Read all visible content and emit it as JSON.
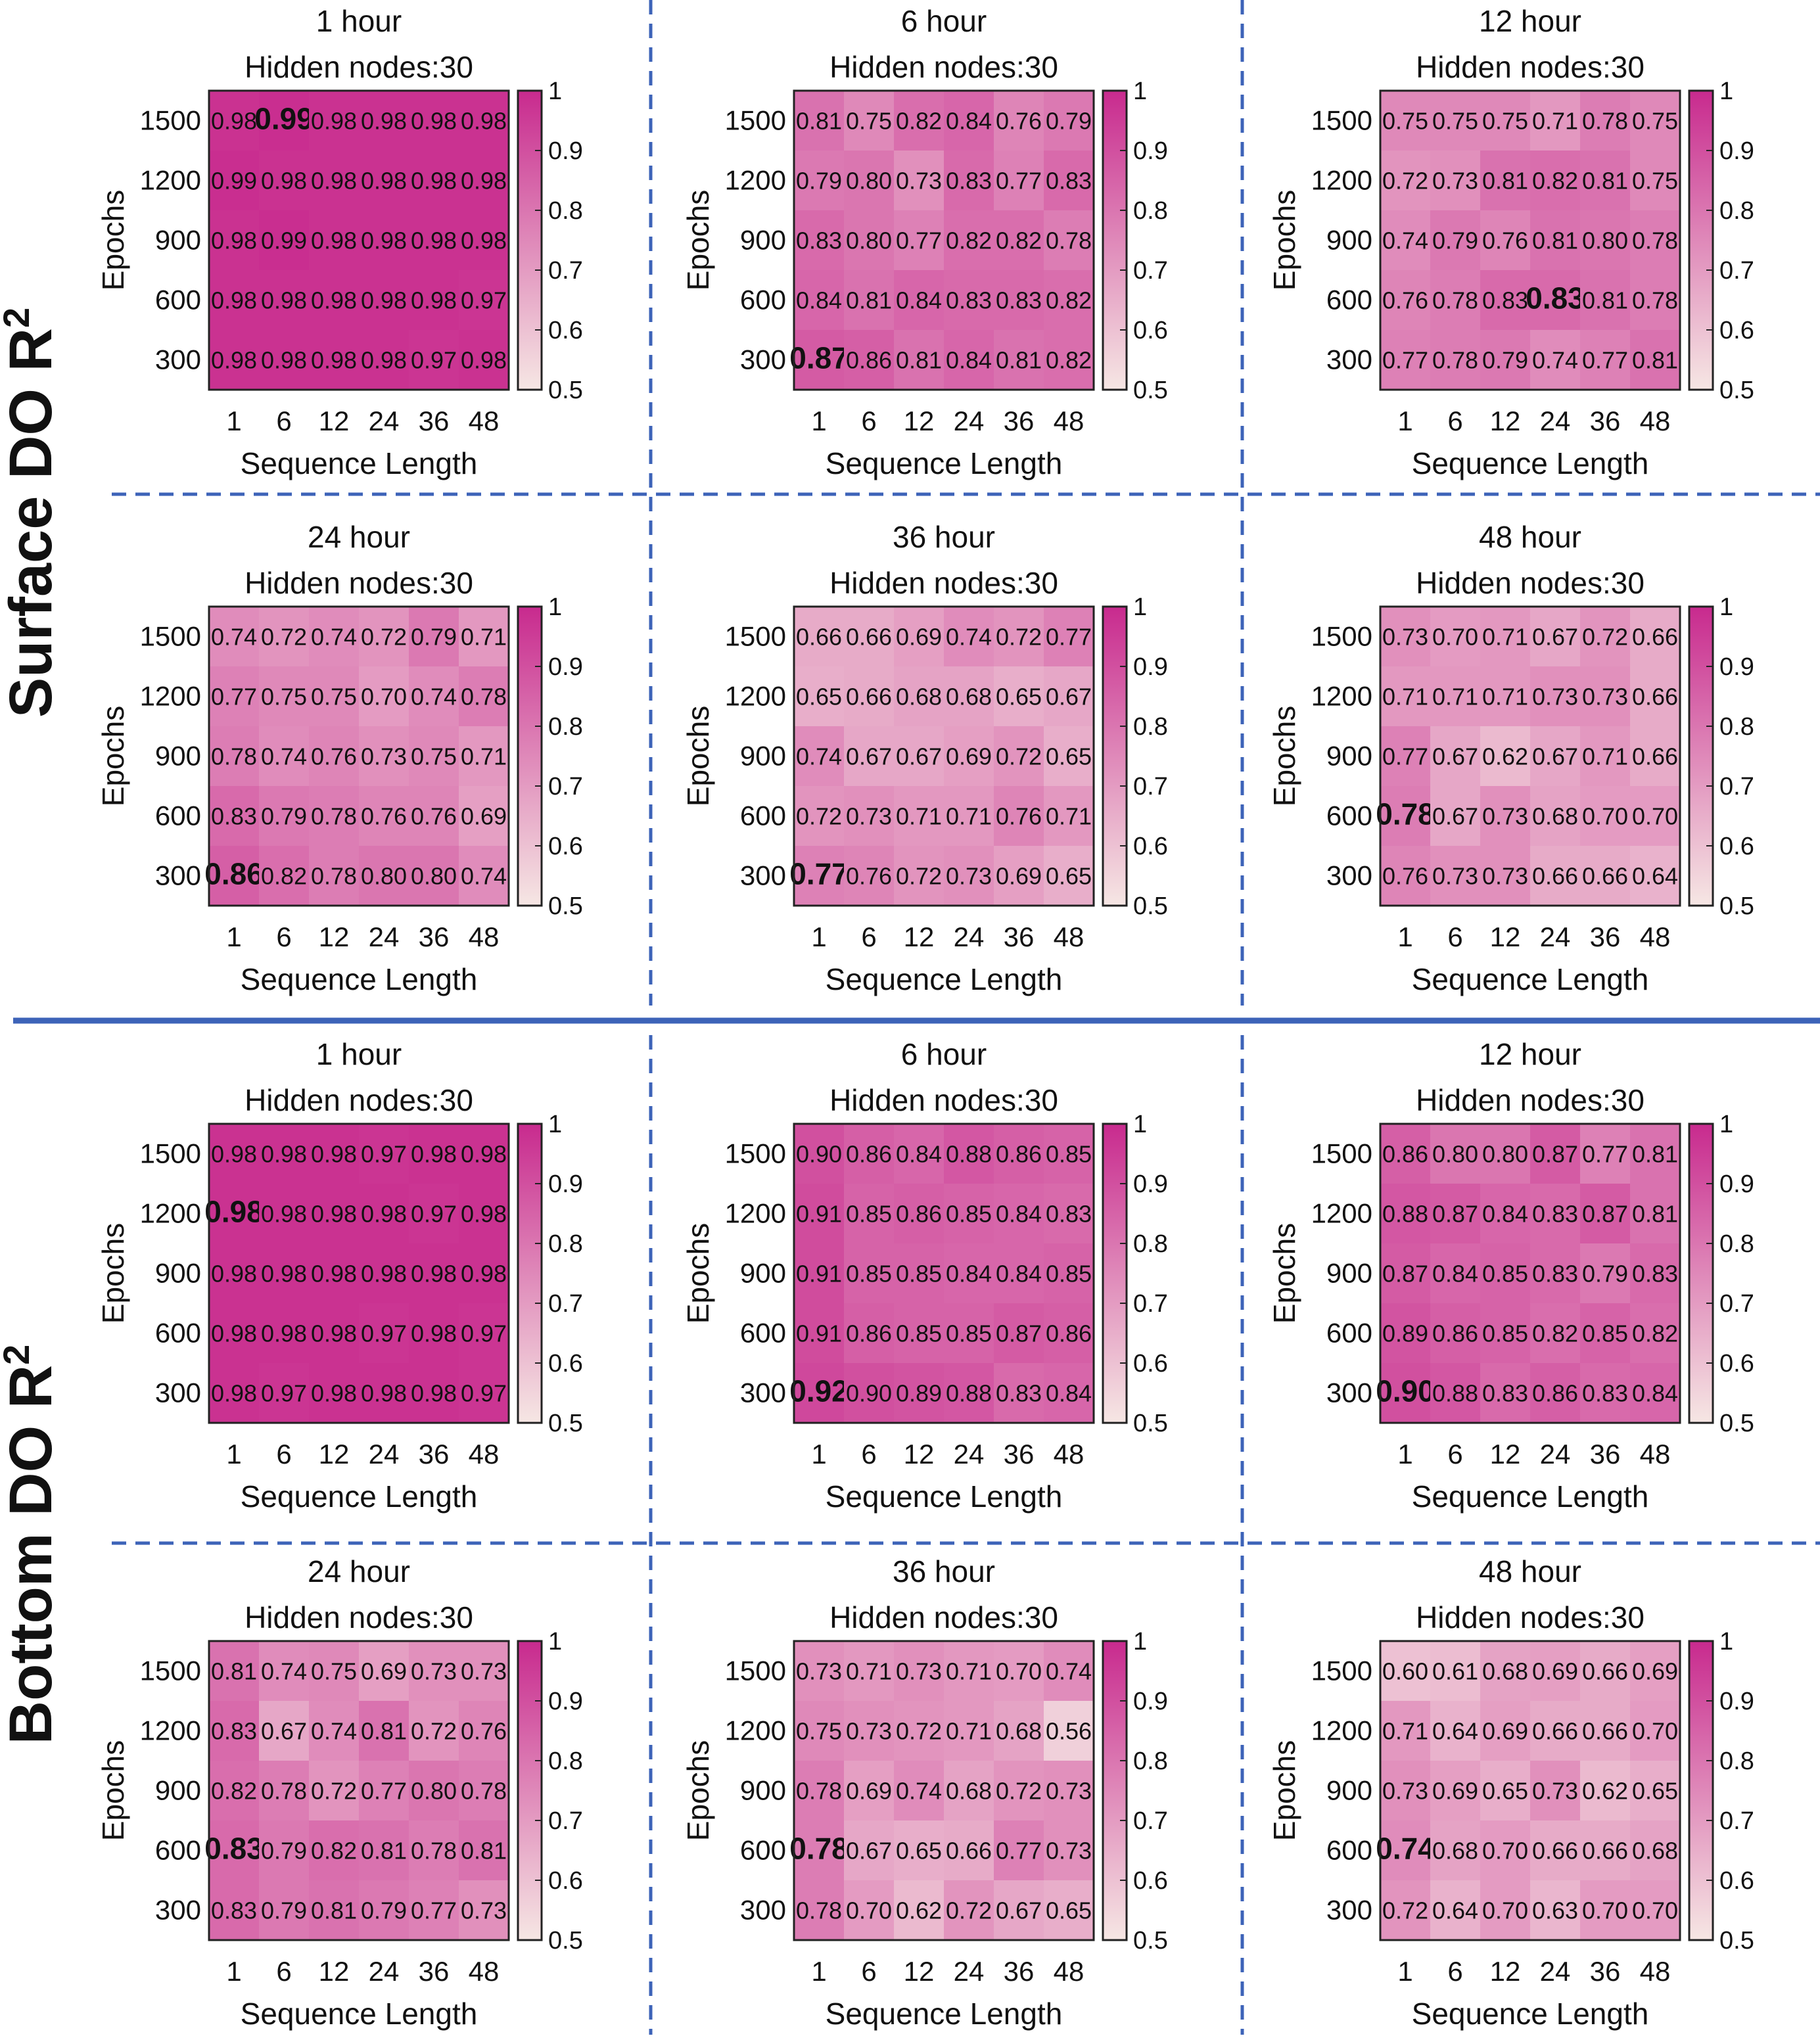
{
  "groups": [
    {
      "label": "Surface DO R",
      "sup": "2"
    },
    {
      "label": "Bottom DO R",
      "sup": "2"
    }
  ],
  "colors": {
    "low": "#f6e7e4",
    "high": "#c82a8e",
    "divider": "#3d63b8"
  },
  "chart_data": [
    {
      "type": "heatmap",
      "group": 0,
      "title": "1 hour",
      "subtitle": "Hidden nodes:30",
      "xlabel": "Sequence Length",
      "ylabel": "Epochs",
      "x": [
        "1",
        "6",
        "12",
        "24",
        "36",
        "48"
      ],
      "y": [
        "1500",
        "1200",
        "900",
        "600",
        "300"
      ],
      "values": [
        [
          0.98,
          0.99,
          0.98,
          0.98,
          0.98,
          0.98
        ],
        [
          0.99,
          0.98,
          0.98,
          0.98,
          0.98,
          0.98
        ],
        [
          0.98,
          0.99,
          0.98,
          0.98,
          0.98,
          0.98
        ],
        [
          0.98,
          0.98,
          0.98,
          0.98,
          0.98,
          0.97
        ],
        [
          0.98,
          0.98,
          0.98,
          0.98,
          0.97,
          0.98
        ]
      ],
      "highlight": [
        0,
        1
      ],
      "colorbar": {
        "range": [
          0.5,
          1
        ],
        "ticks": [
          "1",
          "0.9",
          "0.8",
          "0.7",
          "0.6",
          "0.5"
        ]
      }
    },
    {
      "type": "heatmap",
      "group": 0,
      "title": "6 hour",
      "subtitle": "Hidden nodes:30",
      "xlabel": "Sequence Length",
      "ylabel": "Epochs",
      "x": [
        "1",
        "6",
        "12",
        "24",
        "36",
        "48"
      ],
      "y": [
        "1500",
        "1200",
        "900",
        "600",
        "300"
      ],
      "values": [
        [
          0.81,
          0.75,
          0.82,
          0.84,
          0.76,
          0.79
        ],
        [
          0.79,
          0.8,
          0.73,
          0.83,
          0.77,
          0.83
        ],
        [
          0.83,
          0.8,
          0.77,
          0.82,
          0.82,
          0.78
        ],
        [
          0.84,
          0.81,
          0.84,
          0.83,
          0.83,
          0.82
        ],
        [
          0.87,
          0.86,
          0.81,
          0.84,
          0.81,
          0.82
        ]
      ],
      "highlight": [
        4,
        0
      ],
      "colorbar": {
        "range": [
          0.5,
          1
        ],
        "ticks": [
          "1",
          "0.9",
          "0.8",
          "0.7",
          "0.6",
          "0.5"
        ]
      }
    },
    {
      "type": "heatmap",
      "group": 0,
      "title": "12 hour",
      "subtitle": "Hidden nodes:30",
      "xlabel": "Sequence Length",
      "ylabel": "Epochs",
      "x": [
        "1",
        "6",
        "12",
        "24",
        "36",
        "48"
      ],
      "y": [
        "1500",
        "1200",
        "900",
        "600",
        "300"
      ],
      "values": [
        [
          0.75,
          0.75,
          0.75,
          0.71,
          0.78,
          0.75
        ],
        [
          0.72,
          0.73,
          0.81,
          0.82,
          0.81,
          0.75
        ],
        [
          0.74,
          0.79,
          0.76,
          0.81,
          0.8,
          0.78
        ],
        [
          0.76,
          0.78,
          0.83,
          0.83,
          0.81,
          0.78
        ],
        [
          0.77,
          0.78,
          0.79,
          0.74,
          0.77,
          0.81
        ]
      ],
      "highlight": [
        3,
        3
      ],
      "colorbar": {
        "range": [
          0.5,
          1
        ],
        "ticks": [
          "1",
          "0.9",
          "0.8",
          "0.7",
          "0.6",
          "0.5"
        ]
      }
    },
    {
      "type": "heatmap",
      "group": 0,
      "title": "24 hour",
      "subtitle": "Hidden nodes:30",
      "xlabel": "Sequence Length",
      "ylabel": "Epochs",
      "x": [
        "1",
        "6",
        "12",
        "24",
        "36",
        "48"
      ],
      "y": [
        "1500",
        "1200",
        "900",
        "600",
        "300"
      ],
      "values": [
        [
          0.74,
          0.72,
          0.74,
          0.72,
          0.79,
          0.71
        ],
        [
          0.77,
          0.75,
          0.75,
          0.7,
          0.74,
          0.78
        ],
        [
          0.78,
          0.74,
          0.76,
          0.73,
          0.75,
          0.71
        ],
        [
          0.83,
          0.79,
          0.78,
          0.76,
          0.76,
          0.69
        ],
        [
          0.86,
          0.82,
          0.78,
          0.8,
          0.8,
          0.74
        ]
      ],
      "highlight": [
        4,
        0
      ],
      "colorbar": {
        "range": [
          0.5,
          1
        ],
        "ticks": [
          "1",
          "0.9",
          "0.8",
          "0.7",
          "0.6",
          "0.5"
        ]
      }
    },
    {
      "type": "heatmap",
      "group": 0,
      "title": "36 hour",
      "subtitle": "Hidden nodes:30",
      "xlabel": "Sequence Length",
      "ylabel": "Epochs",
      "x": [
        "1",
        "6",
        "12",
        "24",
        "36",
        "48"
      ],
      "y": [
        "1500",
        "1200",
        "900",
        "600",
        "300"
      ],
      "values": [
        [
          0.66,
          0.66,
          0.69,
          0.74,
          0.72,
          0.77
        ],
        [
          0.65,
          0.66,
          0.68,
          0.68,
          0.65,
          0.67
        ],
        [
          0.74,
          0.67,
          0.67,
          0.69,
          0.72,
          0.65
        ],
        [
          0.72,
          0.73,
          0.71,
          0.71,
          0.76,
          0.71
        ],
        [
          0.77,
          0.76,
          0.72,
          0.73,
          0.69,
          0.65
        ]
      ],
      "highlight": [
        4,
        0
      ],
      "colorbar": {
        "range": [
          0.5,
          1
        ],
        "ticks": [
          "1",
          "0.9",
          "0.8",
          "0.7",
          "0.6",
          "0.5"
        ]
      }
    },
    {
      "type": "heatmap",
      "group": 0,
      "title": "48 hour",
      "subtitle": "Hidden nodes:30",
      "xlabel": "Sequence Length",
      "ylabel": "Epochs",
      "x": [
        "1",
        "6",
        "12",
        "24",
        "36",
        "48"
      ],
      "y": [
        "1500",
        "1200",
        "900",
        "600",
        "300"
      ],
      "values": [
        [
          0.73,
          0.7,
          0.71,
          0.67,
          0.72,
          0.66
        ],
        [
          0.71,
          0.71,
          0.71,
          0.73,
          0.73,
          0.66
        ],
        [
          0.77,
          0.67,
          0.62,
          0.67,
          0.71,
          0.66
        ],
        [
          0.78,
          0.67,
          0.73,
          0.68,
          0.7,
          0.7
        ],
        [
          0.76,
          0.73,
          0.73,
          0.66,
          0.66,
          0.64
        ]
      ],
      "highlight": [
        3,
        0
      ],
      "colorbar": {
        "range": [
          0.5,
          1
        ],
        "ticks": [
          "1",
          "0.9",
          "0.8",
          "0.7",
          "0.6",
          "0.5"
        ]
      }
    },
    {
      "type": "heatmap",
      "group": 1,
      "title": "1 hour",
      "subtitle": "Hidden nodes:30",
      "xlabel": "Sequence Length",
      "ylabel": "Epochs",
      "x": [
        "1",
        "6",
        "12",
        "24",
        "36",
        "48"
      ],
      "y": [
        "1500",
        "1200",
        "900",
        "600",
        "300"
      ],
      "values": [
        [
          0.98,
          0.98,
          0.98,
          0.97,
          0.98,
          0.98
        ],
        [
          0.98,
          0.98,
          0.98,
          0.98,
          0.97,
          0.98
        ],
        [
          0.98,
          0.98,
          0.98,
          0.98,
          0.98,
          0.98
        ],
        [
          0.98,
          0.98,
          0.98,
          0.97,
          0.98,
          0.97
        ],
        [
          0.98,
          0.97,
          0.98,
          0.98,
          0.98,
          0.97
        ]
      ],
      "highlight": [
        1,
        0
      ],
      "colorbar": {
        "range": [
          0.5,
          1
        ],
        "ticks": [
          "1",
          "0.9",
          "0.8",
          "0.7",
          "0.6",
          "0.5"
        ]
      }
    },
    {
      "type": "heatmap",
      "group": 1,
      "title": "6 hour",
      "subtitle": "Hidden nodes:30",
      "xlabel": "Sequence Length",
      "ylabel": "Epochs",
      "x": [
        "1",
        "6",
        "12",
        "24",
        "36",
        "48"
      ],
      "y": [
        "1500",
        "1200",
        "900",
        "600",
        "300"
      ],
      "values": [
        [
          0.9,
          0.86,
          0.84,
          0.88,
          0.86,
          0.85
        ],
        [
          0.91,
          0.85,
          0.86,
          0.85,
          0.84,
          0.83
        ],
        [
          0.91,
          0.85,
          0.85,
          0.84,
          0.84,
          0.85
        ],
        [
          0.91,
          0.86,
          0.85,
          0.85,
          0.87,
          0.86
        ],
        [
          0.92,
          0.9,
          0.89,
          0.88,
          0.83,
          0.84
        ]
      ],
      "highlight": [
        4,
        0
      ],
      "colorbar": {
        "range": [
          0.5,
          1
        ],
        "ticks": [
          "1",
          "0.9",
          "0.8",
          "0.7",
          "0.6",
          "0.5"
        ]
      }
    },
    {
      "type": "heatmap",
      "group": 1,
      "title": "12 hour",
      "subtitle": "Hidden nodes:30",
      "xlabel": "Sequence Length",
      "ylabel": "Epochs",
      "x": [
        "1",
        "6",
        "12",
        "24",
        "36",
        "48"
      ],
      "y": [
        "1500",
        "1200",
        "900",
        "600",
        "300"
      ],
      "values": [
        [
          0.86,
          0.8,
          0.8,
          0.87,
          0.77,
          0.81
        ],
        [
          0.88,
          0.87,
          0.84,
          0.83,
          0.87,
          0.81
        ],
        [
          0.87,
          0.84,
          0.85,
          0.83,
          0.79,
          0.83
        ],
        [
          0.89,
          0.86,
          0.85,
          0.82,
          0.85,
          0.82
        ],
        [
          0.9,
          0.88,
          0.83,
          0.86,
          0.83,
          0.84
        ]
      ],
      "highlight": [
        4,
        0
      ],
      "colorbar": {
        "range": [
          0.5,
          1
        ],
        "ticks": [
          "1",
          "0.9",
          "0.8",
          "0.7",
          "0.6",
          "0.5"
        ]
      }
    },
    {
      "type": "heatmap",
      "group": 1,
      "title": "24 hour",
      "subtitle": "Hidden nodes:30",
      "xlabel": "Sequence Length",
      "ylabel": "Epochs",
      "x": [
        "1",
        "6",
        "12",
        "24",
        "36",
        "48"
      ],
      "y": [
        "1500",
        "1200",
        "900",
        "600",
        "300"
      ],
      "values": [
        [
          0.81,
          0.74,
          0.75,
          0.69,
          0.73,
          0.73
        ],
        [
          0.83,
          0.67,
          0.74,
          0.81,
          0.72,
          0.76
        ],
        [
          0.82,
          0.78,
          0.72,
          0.77,
          0.8,
          0.78
        ],
        [
          0.83,
          0.79,
          0.82,
          0.81,
          0.78,
          0.81
        ],
        [
          0.83,
          0.79,
          0.81,
          0.79,
          0.77,
          0.73
        ]
      ],
      "highlight": [
        3,
        0
      ],
      "colorbar": {
        "range": [
          0.5,
          1
        ],
        "ticks": [
          "1",
          "0.9",
          "0.8",
          "0.7",
          "0.6",
          "0.5"
        ]
      }
    },
    {
      "type": "heatmap",
      "group": 1,
      "title": "36 hour",
      "subtitle": "Hidden nodes:30",
      "xlabel": "Sequence Length",
      "ylabel": "Epochs",
      "x": [
        "1",
        "6",
        "12",
        "24",
        "36",
        "48"
      ],
      "y": [
        "1500",
        "1200",
        "900",
        "600",
        "300"
      ],
      "values": [
        [
          0.73,
          0.71,
          0.73,
          0.71,
          0.7,
          0.74
        ],
        [
          0.75,
          0.73,
          0.72,
          0.71,
          0.68,
          0.56
        ],
        [
          0.78,
          0.69,
          0.74,
          0.68,
          0.72,
          0.73
        ],
        [
          0.78,
          0.67,
          0.65,
          0.66,
          0.77,
          0.73
        ],
        [
          0.78,
          0.7,
          0.62,
          0.72,
          0.67,
          0.65
        ]
      ],
      "highlight": [
        3,
        0
      ],
      "colorbar": {
        "range": [
          0.5,
          1
        ],
        "ticks": [
          "1",
          "0.9",
          "0.8",
          "0.7",
          "0.6",
          "0.5"
        ]
      }
    },
    {
      "type": "heatmap",
      "group": 1,
      "title": "48 hour",
      "subtitle": "Hidden nodes:30",
      "xlabel": "Sequence Length",
      "ylabel": "Epochs",
      "x": [
        "1",
        "6",
        "12",
        "24",
        "36",
        "48"
      ],
      "y": [
        "1500",
        "1200",
        "900",
        "600",
        "300"
      ],
      "values": [
        [
          0.6,
          0.61,
          0.68,
          0.69,
          0.66,
          0.69
        ],
        [
          0.71,
          0.64,
          0.69,
          0.66,
          0.66,
          0.7
        ],
        [
          0.73,
          0.69,
          0.65,
          0.73,
          0.62,
          0.65
        ],
        [
          0.74,
          0.68,
          0.7,
          0.66,
          0.66,
          0.68
        ],
        [
          0.72,
          0.64,
          0.7,
          0.63,
          0.7,
          0.7
        ]
      ],
      "highlight": [
        3,
        0
      ],
      "colorbar": {
        "range": [
          0.5,
          1
        ],
        "ticks": [
          "1",
          "0.9",
          "0.8",
          "0.7",
          "0.6",
          "0.5"
        ]
      }
    }
  ]
}
